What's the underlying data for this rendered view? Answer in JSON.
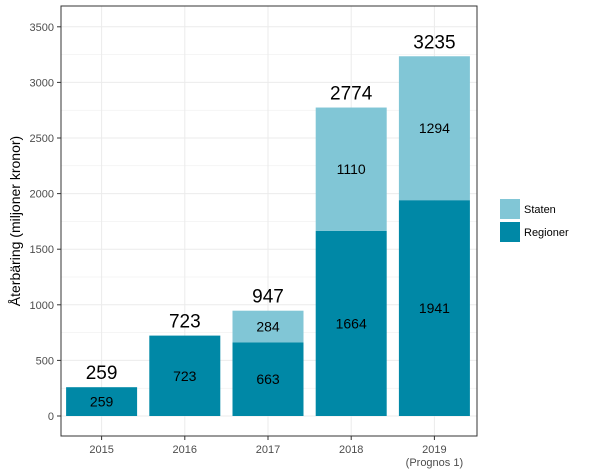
{
  "chart_data": {
    "type": "bar",
    "stacked": true,
    "categories": [
      "2015",
      "2016",
      "2017",
      "2018",
      "2019"
    ],
    "category_sublabels": [
      "",
      "",
      "",
      "",
      "(Prognos 1)"
    ],
    "series": [
      {
        "name": "Regioner",
        "values": [
          259,
          723,
          663,
          1664,
          1941
        ],
        "color": "#0088a6"
      },
      {
        "name": "Staten",
        "values": [
          0,
          0,
          284,
          1110,
          1294
        ],
        "color": "#81c6d6"
      }
    ],
    "totals": [
      259,
      723,
      947,
      2774,
      3235
    ],
    "ylabel": "Återbäring (miljoner kronor)",
    "xlabel": "",
    "title": "",
    "ylim": [
      -160,
      3650
    ],
    "yticks": [
      0,
      500,
      1000,
      1500,
      2000,
      2500,
      3000,
      3500
    ],
    "grid": true,
    "legend": {
      "position": "right",
      "items": [
        "Staten",
        "Regioner"
      ]
    },
    "colors": {
      "grid": "#ebebeb",
      "border": "#333333",
      "text": "#4d4d4d"
    }
  }
}
